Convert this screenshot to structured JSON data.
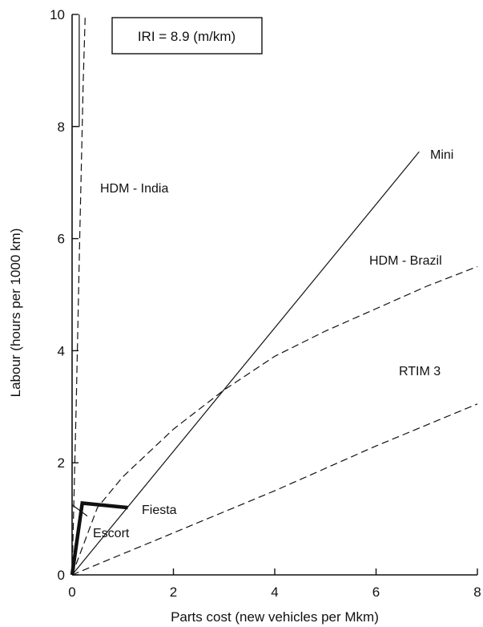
{
  "chart_data": {
    "type": "line",
    "title": "",
    "xlabel": "Parts cost (new vehicles per Mkm)",
    "ylabel": "Labour (hours per 1000 km)",
    "xlim": [
      0,
      8
    ],
    "ylim": [
      0,
      10
    ],
    "xticks": [
      0,
      2,
      4,
      6,
      8
    ],
    "yticks": [
      0,
      2,
      4,
      6,
      8,
      10
    ],
    "grid": false,
    "annotation": "IRI = 8.9 (m/km)",
    "series": [
      {
        "name": "Mini",
        "style": "solid-thin",
        "x": [
          0,
          6.85
        ],
        "y": [
          0,
          7.55
        ]
      },
      {
        "name": "HDM - Brazil",
        "style": "dashed",
        "x": [
          0,
          0.5,
          1,
          2,
          3,
          4,
          5,
          6,
          7,
          8
        ],
        "y": [
          0,
          1.2,
          1.75,
          2.6,
          3.3,
          3.9,
          4.35,
          4.75,
          5.15,
          5.5
        ]
      },
      {
        "name": "RTIM 3",
        "style": "dashed",
        "x": [
          0,
          2,
          4,
          6,
          8
        ],
        "y": [
          0,
          0.75,
          1.5,
          2.3,
          3.05
        ]
      },
      {
        "name": "HDM - India",
        "style": "dashed",
        "x": [
          0,
          0.08,
          0.15,
          0.22,
          0.26
        ],
        "y": [
          0,
          3.0,
          6.0,
          8.8,
          10
        ]
      },
      {
        "name": "Fiesta",
        "style": "solid-thick",
        "x": [
          0,
          0.2,
          1.1
        ],
        "y": [
          0,
          1.28,
          1.2
        ]
      },
      {
        "name": "Escort",
        "style": "solid-thin",
        "x": [
          0,
          0.3
        ],
        "y": [
          1.25,
          1.05
        ]
      }
    ],
    "extra_marks": [
      {
        "name": "india-axis-tick",
        "style": "solid-thin",
        "x": [
          0,
          0.14,
          0.14
        ],
        "y": [
          8.0,
          8.0,
          10
        ]
      }
    ],
    "series_labels": {
      "Mini": "Mini",
      "HDM - Brazil": "HDM - Brazil",
      "RTIM 3": "RTIM 3",
      "HDM - India": "HDM - India",
      "Fiesta": "Fiesta",
      "Escort": "Escort"
    }
  }
}
